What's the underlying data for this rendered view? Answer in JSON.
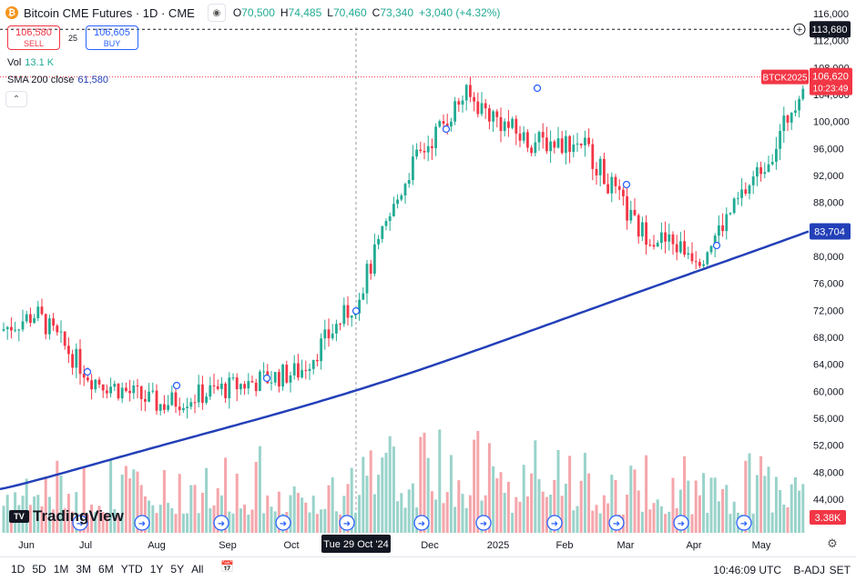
{
  "header": {
    "symbol": "Bitcoin CME Futures · 1D · CME",
    "icon": "bitcoin-icon",
    "ohlc": [
      {
        "key": "O",
        "value": "70,500"
      },
      {
        "key": "H",
        "value": "74,485"
      },
      {
        "key": "L",
        "value": "70,460"
      },
      {
        "key": "C",
        "value": "73,340"
      },
      {
        "key": "",
        "value": "+3,040 (+4.32%)"
      }
    ]
  },
  "trade": {
    "sell_price": "106,580",
    "sell_label": "SELL",
    "spread": "25",
    "buy_price": "106,605",
    "buy_label": "BUY"
  },
  "indicators": {
    "vol_label": "Vol",
    "vol_value": "13.1 K",
    "sma_label": "SMA 200 close",
    "sma_value": "61,580"
  },
  "price_axis": {
    "ticks": [
      116000,
      112000,
      108000,
      104000,
      100000,
      96000,
      92000,
      88000,
      84000,
      80000,
      76000,
      72000,
      68000,
      64000,
      60000,
      56000,
      52000,
      48000,
      44000
    ],
    "tick_labels": [
      "116,000",
      "112,000",
      "108,000",
      "104,000",
      "100,000",
      "96,000",
      "92,000",
      "88,000",
      "84,000",
      "80,000",
      "76,000",
      "72,000",
      "68,000",
      "64,000",
      "60,000",
      "56,000",
      "52,000",
      "48,000",
      "44,000"
    ],
    "alert_price": "113,680",
    "symbol_tag": "BTCK2025",
    "last_price": "106,620",
    "countdown": "10:23:49",
    "sma_price": "83,704",
    "volume_tag": "3.38K"
  },
  "time_axis": {
    "labels": [
      "Jun",
      "Jul",
      "Aug",
      "Sep",
      "Oct",
      "Dec",
      "2025",
      "Feb",
      "Mar",
      "Apr",
      "May"
    ],
    "crosshair_label": "Tue 29 Oct '24"
  },
  "colors": {
    "up": "#22ab94",
    "down": "#f23645",
    "sma": "#2340b8",
    "vol_up": "#99d3ca",
    "vol_down": "#f5a6ab"
  },
  "bottom_bar": {
    "ranges": [
      "1D",
      "5D",
      "1M",
      "3M",
      "6M",
      "YTD",
      "1Y",
      "5Y",
      "All"
    ],
    "clock": "10:46:09 UTC",
    "badj": "B-ADJ",
    "settle": "SET"
  },
  "logo": "TradingView",
  "chart_data": {
    "type": "candlestick",
    "symbol": "BTCK2025",
    "ylim": [
      42000,
      117000
    ],
    "x_labels": [
      "Jun",
      "Jul",
      "Aug",
      "Sep",
      "Oct",
      "Dec",
      "2025",
      "Feb",
      "Mar",
      "Apr",
      "May"
    ],
    "close_anchors": [
      {
        "date": "May 2024",
        "value": 69000
      },
      {
        "date": "Jun 2024",
        "value": 71500
      },
      {
        "date": "Jul 2024",
        "value": 62000
      },
      {
        "date": "Aug 2024",
        "value": 58000
      },
      {
        "date": "Sep 2024",
        "value": 60500
      },
      {
        "date": "Oct 2024",
        "value": 63000
      },
      {
        "date": "29 Oct 2024",
        "value": 73340
      },
      {
        "date": "Nov 2024",
        "value": 93000
      },
      {
        "date": "Dec 2024",
        "value": 104000
      },
      {
        "date": "Jan 2025",
        "value": 97000
      },
      {
        "date": "Feb 2025",
        "value": 97000
      },
      {
        "date": "Mar 2025",
        "value": 84000
      },
      {
        "date": "Apr 2025",
        "value": 80000
      },
      {
        "date": "May 2025",
        "value": 96000
      },
      {
        "date": "May 2025 (last)",
        "value": 106620
      }
    ],
    "sma200": {
      "name": "SMA 200 close",
      "start": 45500,
      "end": 83704
    },
    "volume": {
      "label": "Vol",
      "last": "3.38K"
    }
  }
}
